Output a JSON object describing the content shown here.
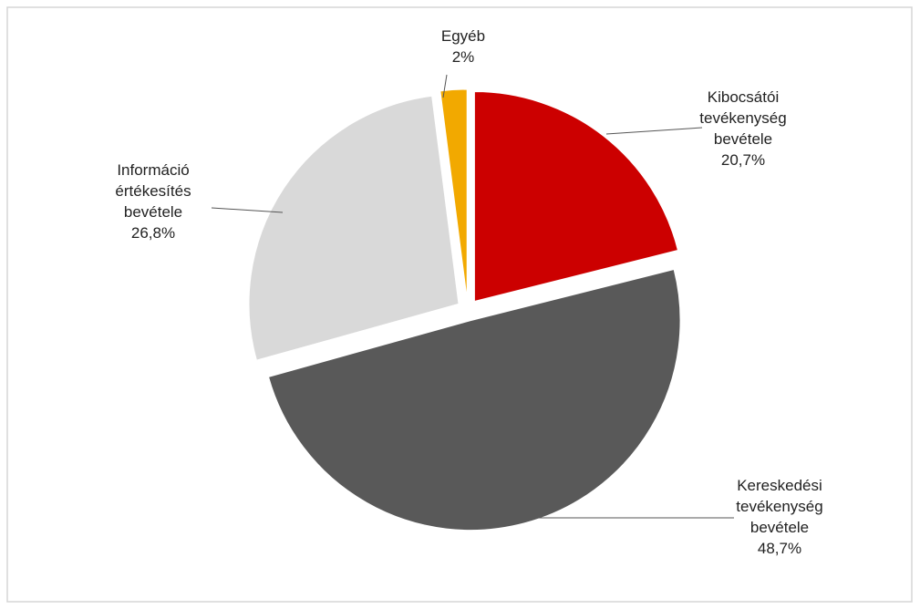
{
  "chart_data": {
    "type": "pie",
    "categories": [
      "Kibocsátói tevékenység bevétele",
      "Kereskedési tevékenység bevétele",
      "Információ értékesítés bevétele",
      "Egyéb"
    ],
    "values": [
      20.7,
      48.7,
      26.8,
      2
    ],
    "value_labels": [
      "20,7%",
      "48,7%",
      "26,8%",
      "2%"
    ],
    "colors": [
      "#cc0000",
      "#595959",
      "#d9d9d9",
      "#f2a900"
    ]
  }
}
